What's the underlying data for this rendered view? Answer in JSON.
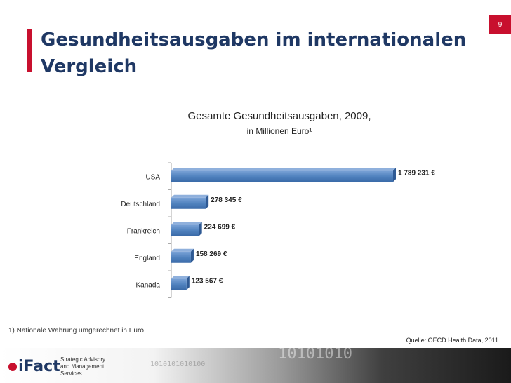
{
  "page": {
    "number": "9"
  },
  "title": {
    "line1": "Gesundheitsausgaben im internationalen",
    "line2": "Vergleich"
  },
  "footnote": "1) Nationale Währung umgerechnet in Euro",
  "source": "Quelle: OECD Health Data, 2011",
  "footer": {
    "logo_text": "iFact",
    "tagline": [
      "Strategic Advisory",
      "and Management",
      "Services"
    ],
    "binary_large": "10101010",
    "binary_small": "1010101010100"
  },
  "colors": {
    "bar": "#4f81bd",
    "accent": "#c8102e",
    "title": "#1f3864"
  },
  "chart_data": {
    "type": "bar",
    "orientation": "horizontal",
    "title": "Gesamte Gesundheitsausgaben, 2009,",
    "subtitle": "in Millionen Euro¹",
    "categories": [
      "USA",
      "Deutschland",
      "Frankreich",
      "England",
      "Kanada"
    ],
    "values": [
      1789231,
      278345,
      224699,
      158269,
      123567
    ],
    "data_labels": [
      "1 789 231 €",
      "278 345 €",
      "224 699 €",
      "158 269 €",
      "123 567 €"
    ],
    "xlim": [
      0,
      1789231
    ],
    "grid": false
  }
}
